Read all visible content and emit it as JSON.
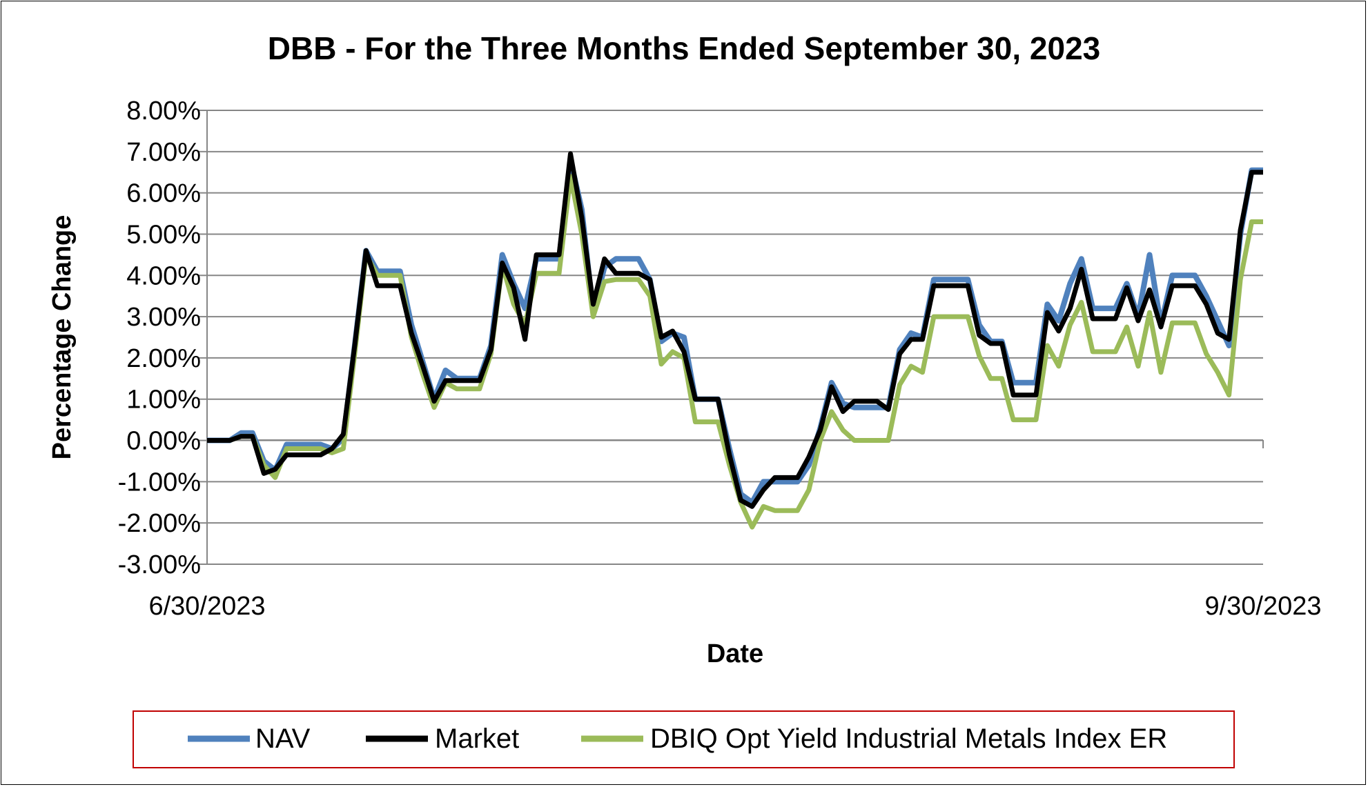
{
  "chart_data": {
    "type": "line",
    "title": "DBB - For the Three Months Ended September 30, 2023",
    "xlabel": "Date",
    "ylabel": "Percentage Change",
    "x_tick_labels": [
      "6/30/2023",
      "9/30/2023"
    ],
    "y_tick_labels": [
      "8.00%",
      "7.00%",
      "6.00%",
      "5.00%",
      "4.00%",
      "3.00%",
      "2.00%",
      "1.00%",
      "0.00%",
      "-1.00%",
      "-2.00%",
      "-3.00%"
    ],
    "ylim": [
      -3,
      8
    ],
    "grid": true,
    "legend_position": "bottom",
    "x_start": "6/30/2023",
    "x_end": "9/30/2023",
    "series": [
      {
        "name": "NAV",
        "color": "#4F81BD",
        "values": [
          0,
          0,
          0,
          0.18,
          0.18,
          -0.5,
          -0.72,
          -0.1,
          -0.1,
          -0.1,
          -0.1,
          -0.2,
          0.05,
          2.3,
          4.6,
          4.1,
          4.1,
          4.1,
          2.8,
          1.9,
          1.0,
          1.7,
          1.5,
          1.5,
          1.5,
          2.3,
          4.5,
          3.8,
          3.2,
          4.4,
          4.4,
          4.4,
          6.8,
          5.6,
          3.1,
          4.2,
          4.4,
          4.4,
          4.4,
          3.9,
          2.4,
          2.6,
          2.5,
          1.0,
          1.0,
          1.0,
          -0.2,
          -1.3,
          -1.5,
          -1.0,
          -1.0,
          -1.0,
          -1.0,
          -0.6,
          0.3,
          1.4,
          0.9,
          0.8,
          0.8,
          0.8,
          0.8,
          2.2,
          2.6,
          2.5,
          3.9,
          3.9,
          3.9,
          3.9,
          2.8,
          2.4,
          2.4,
          1.4,
          1.4,
          1.4,
          3.3,
          2.9,
          3.8,
          4.4,
          3.2,
          3.2,
          3.2,
          3.8,
          3.0,
          4.5,
          2.8,
          4.0,
          4.0,
          4.0,
          3.5,
          2.9,
          2.3,
          5.0,
          6.55,
          6.55
        ],
        "values_source": "estimated from gridlines"
      },
      {
        "name": "Market",
        "color": "#000000",
        "values": [
          0,
          0,
          0,
          0.1,
          0.1,
          -0.8,
          -0.7,
          -0.35,
          -0.35,
          -0.35,
          -0.35,
          -0.2,
          0.15,
          2.3,
          4.6,
          3.75,
          3.75,
          3.75,
          2.6,
          1.8,
          0.95,
          1.45,
          1.45,
          1.45,
          1.45,
          2.2,
          4.3,
          3.7,
          2.45,
          4.5,
          4.5,
          4.5,
          6.95,
          5.4,
          3.3,
          4.4,
          4.05,
          4.05,
          4.05,
          3.9,
          2.5,
          2.65,
          2.15,
          1.0,
          1.0,
          1.0,
          -0.35,
          -1.45,
          -1.6,
          -1.2,
          -0.9,
          -0.9,
          -0.9,
          -0.4,
          0.25,
          1.3,
          0.7,
          0.95,
          0.95,
          0.95,
          0.75,
          2.1,
          2.45,
          2.45,
          3.75,
          3.75,
          3.75,
          3.75,
          2.55,
          2.35,
          2.35,
          1.1,
          1.1,
          1.1,
          3.1,
          2.65,
          3.2,
          4.15,
          2.95,
          2.95,
          2.95,
          3.7,
          2.9,
          3.65,
          2.75,
          3.75,
          3.75,
          3.75,
          3.3,
          2.6,
          2.45,
          5.1,
          6.5,
          6.5
        ],
        "values_source": "estimated from gridlines"
      },
      {
        "name": "DBIQ Opt Yield Industrial Metals Index ER",
        "color": "#9BBB59",
        "values": [
          0,
          0,
          0,
          0.1,
          0.1,
          -0.6,
          -0.9,
          -0.2,
          -0.2,
          -0.2,
          -0.2,
          -0.3,
          -0.2,
          2.1,
          4.5,
          4.0,
          4.0,
          4.0,
          2.5,
          1.6,
          0.8,
          1.4,
          1.25,
          1.25,
          1.25,
          2.1,
          4.25,
          3.3,
          2.8,
          4.05,
          4.05,
          4.05,
          6.4,
          5.0,
          3.0,
          3.85,
          3.9,
          3.9,
          3.9,
          3.5,
          1.85,
          2.15,
          2.0,
          0.45,
          0.45,
          0.45,
          -0.6,
          -1.5,
          -2.1,
          -1.6,
          -1.7,
          -1.7,
          -1.7,
          -1.2,
          0.0,
          0.7,
          0.25,
          0.0,
          0.0,
          0.0,
          0.0,
          1.35,
          1.8,
          1.65,
          3.0,
          3.0,
          3.0,
          3.0,
          2.05,
          1.5,
          1.5,
          0.5,
          0.5,
          0.5,
          2.3,
          1.8,
          2.8,
          3.35,
          2.15,
          2.15,
          2.15,
          2.75,
          1.8,
          3.1,
          1.65,
          2.85,
          2.85,
          2.85,
          2.1,
          1.65,
          1.1,
          3.9,
          5.3,
          5.3
        ],
        "values_source": "estimated from gridlines"
      }
    ]
  }
}
